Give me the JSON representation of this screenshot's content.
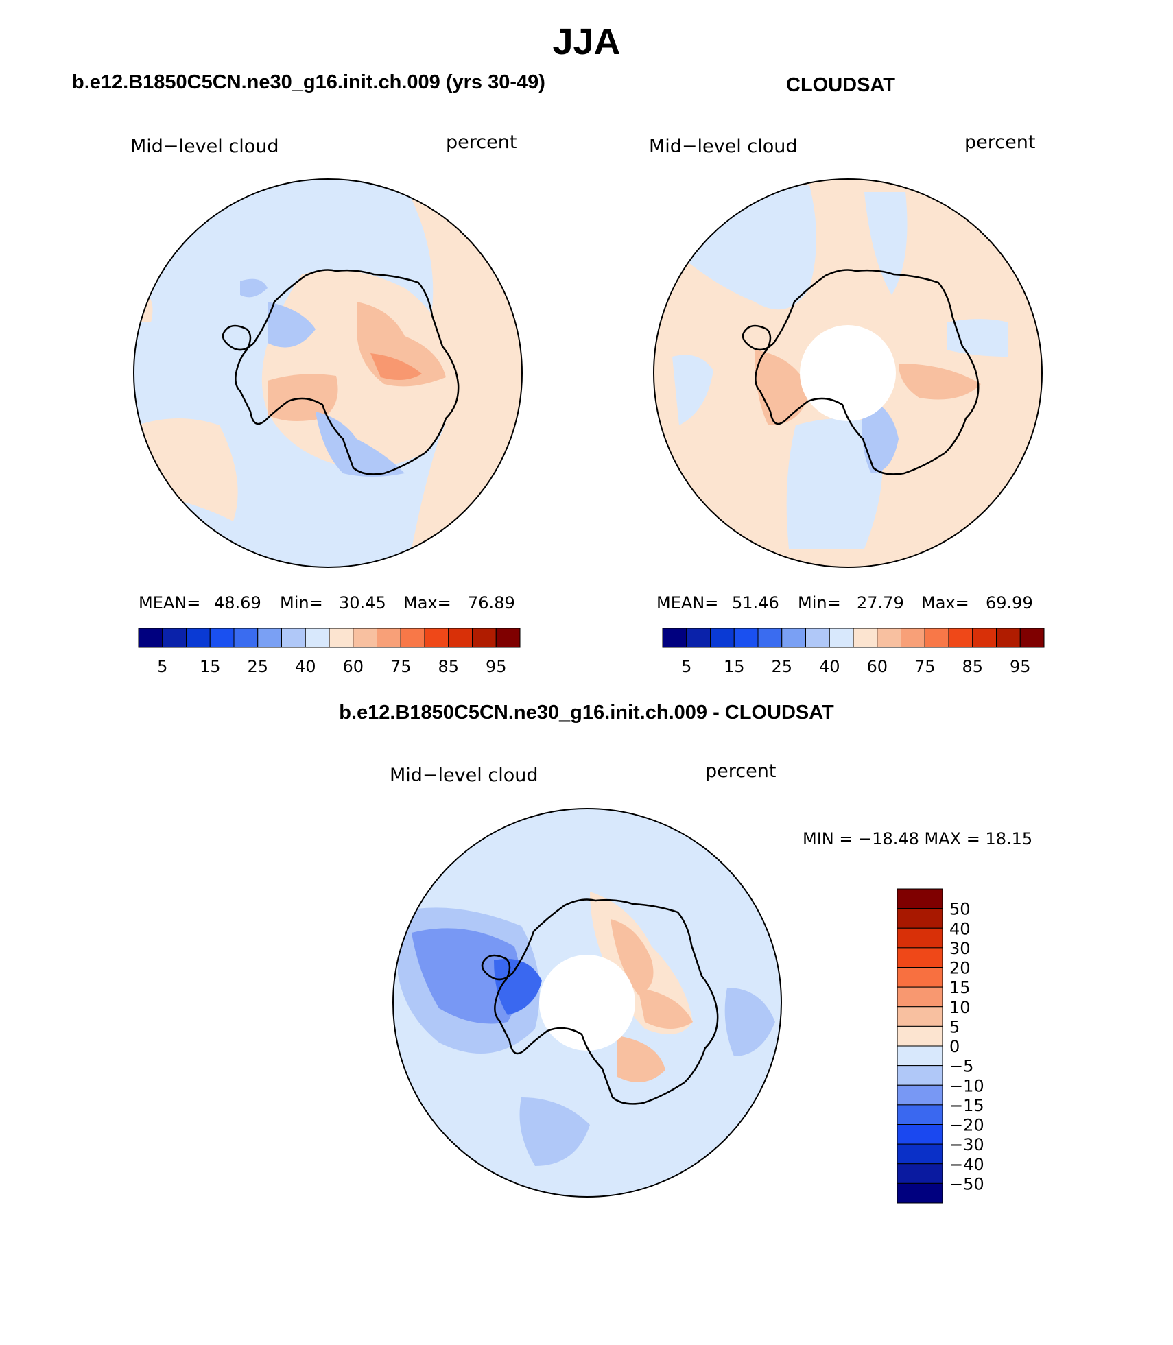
{
  "page": {
    "title": "JJA",
    "subtitle": "b.e12.B1850C5CN.ne30_g16.init.ch.009 - CLOUDSAT"
  },
  "colors": {
    "abs_scale": [
      "#00007f",
      "#0a22aa",
      "#0a3ad4",
      "#1a50f0",
      "#3a6cf0",
      "#7aa0f4",
      "#b0c8f8",
      "#d8e8fc",
      "#fce4d0",
      "#f8c0a0",
      "#f8a078",
      "#f87848",
      "#ef4818",
      "#d83008",
      "#b01c00",
      "#7f0000"
    ],
    "diff_scale": [
      "#00007f",
      "#0a1aa0",
      "#0a30c8",
      "#1a48f0",
      "#3a68f0",
      "#7898f4",
      "#b0c8f8",
      "#d8e8fc",
      "#fce4d0",
      "#f8c0a0",
      "#f89870",
      "#f87040",
      "#ef4818",
      "#d83008",
      "#a81800",
      "#7f0000"
    ]
  },
  "panels": [
    {
      "id": "model",
      "header": "b.e12.B1850C5CN.ne30_g16.init.ch.009 (yrs 30-49)",
      "field": "Mid−level cloud",
      "units": "percent",
      "mean_label": "MEAN=",
      "mean": "48.69",
      "min_label": "Min=",
      "min": "30.45",
      "max_label": "Max=",
      "max": "76.89"
    },
    {
      "id": "obs",
      "header": "CLOUDSAT",
      "field": "Mid−level cloud",
      "units": "percent",
      "mean_label": "MEAN=",
      "mean": "51.46",
      "min_label": "Min=",
      "min": "27.79",
      "max_label": "Max=",
      "max": "69.99"
    },
    {
      "id": "diff",
      "field": "Mid−level cloud",
      "units": "percent",
      "minmax": "MIN = −18.48 MAX =   18.15"
    }
  ],
  "chart_data": [
    {
      "type": "heatmap",
      "title": "b.e12.B1850C5CN.ne30_g16.init.ch.009 (yrs 30-49)",
      "projection": "south polar stereographic",
      "variable": "Mid-level cloud",
      "units": "percent",
      "stats": {
        "mean": 48.69,
        "min": 30.45,
        "max": 76.89
      },
      "colorbar_ticks": [
        "5",
        "15",
        "25",
        "40",
        "60",
        "75",
        "85",
        "95"
      ]
    },
    {
      "type": "heatmap",
      "title": "CLOUDSAT",
      "projection": "south polar stereographic",
      "variable": "Mid-level cloud",
      "units": "percent",
      "stats": {
        "mean": 51.46,
        "min": 27.79,
        "max": 69.99
      },
      "colorbar_ticks": [
        "5",
        "15",
        "25",
        "40",
        "60",
        "75",
        "85",
        "95"
      ]
    },
    {
      "type": "heatmap",
      "title": "b.e12.B1850C5CN.ne30_g16.init.ch.009 - CLOUDSAT",
      "projection": "south polar stereographic",
      "variable": "Mid-level cloud",
      "units": "percent",
      "stats": {
        "min": -18.48,
        "max": 18.15
      },
      "colorbar_ticks": [
        "50",
        "40",
        "30",
        "20",
        "15",
        "10",
        "5",
        "0",
        "−5",
        "−10",
        "−15",
        "−20",
        "−30",
        "−40",
        "−50"
      ]
    }
  ]
}
